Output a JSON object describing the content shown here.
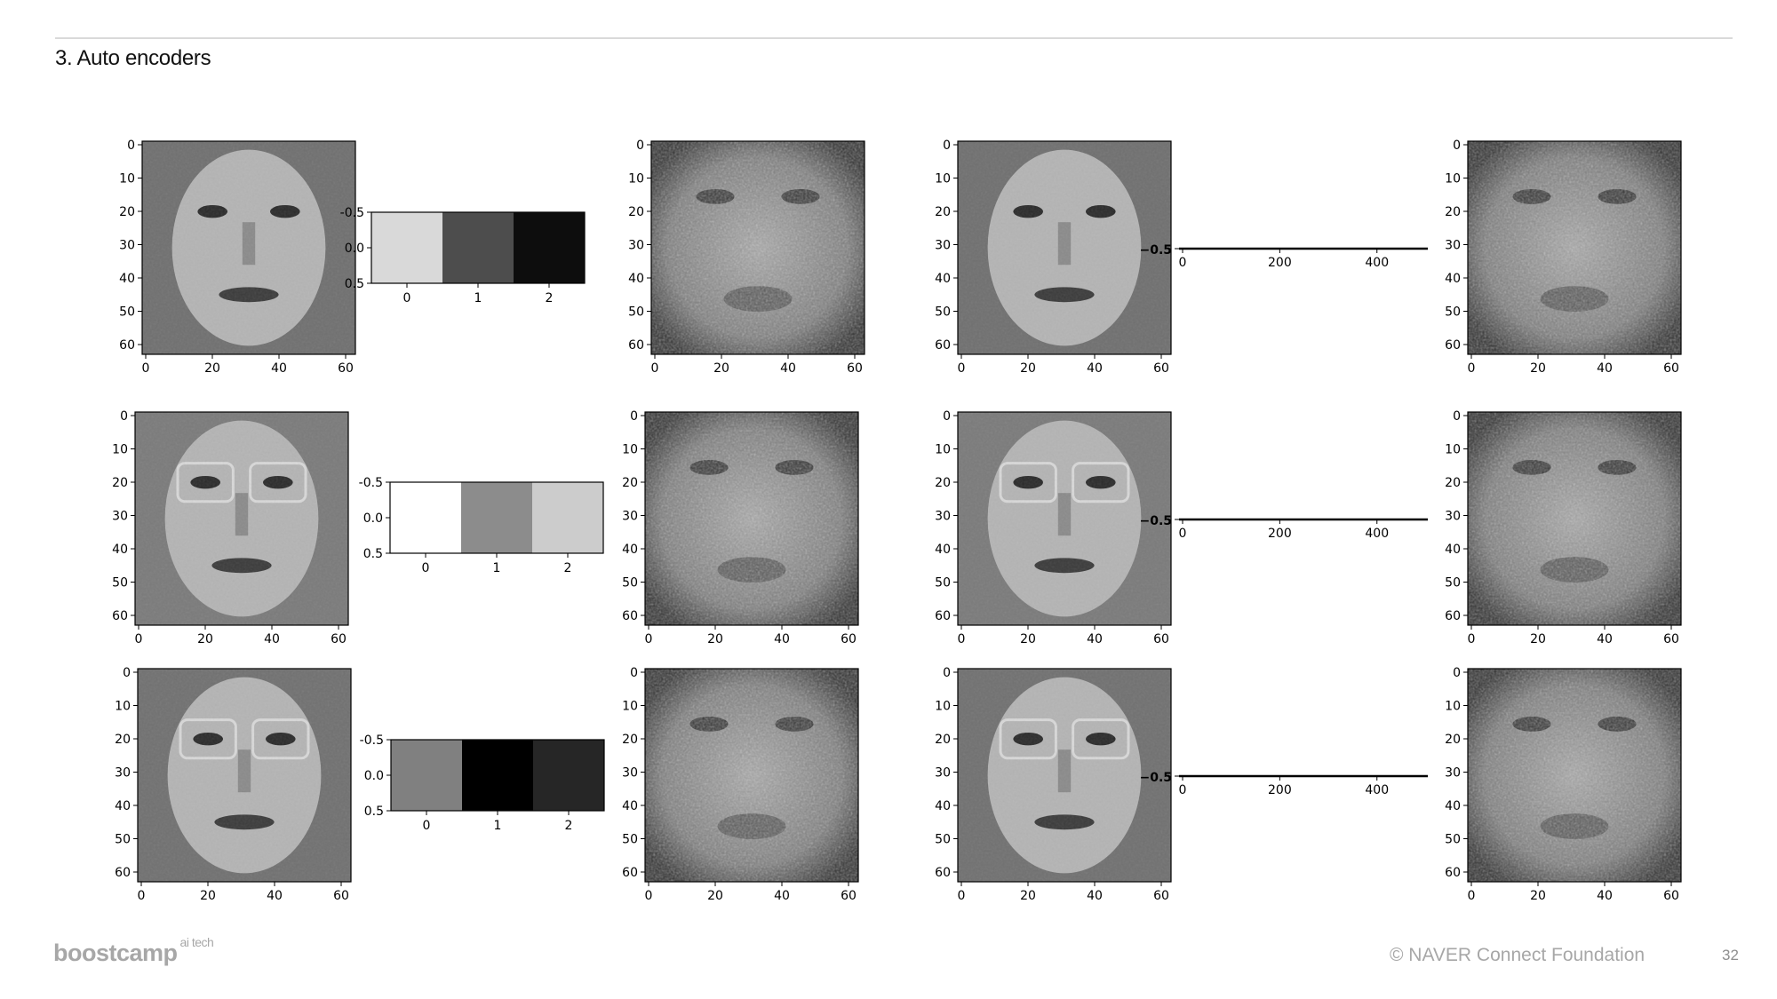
{
  "title": "3. Auto encoders",
  "footer": {
    "brand": "boostcamp",
    "brand_sup": "ai tech",
    "copyright": "© NAVER Connect Foundation",
    "page": "32"
  },
  "image_axes": {
    "ticks": [
      "0",
      "20",
      "40",
      "60"
    ],
    "yticks": [
      "0",
      "10",
      "20",
      "30",
      "40",
      "50",
      "60"
    ]
  },
  "chart_data": [
    {
      "type": "heatmap",
      "rows": [
        {
          "values": [
            0.85,
            0.3,
            0.05
          ],
          "xticks": [
            "0",
            "1",
            "2"
          ],
          "yticks": [
            "-0.5",
            "0.0",
            "0.5"
          ]
        },
        {
          "values": [
            1.0,
            0.55,
            0.8
          ],
          "xticks": [
            "0",
            "1",
            "2"
          ],
          "yticks": [
            "-0.5",
            "0.0",
            "0.5"
          ]
        },
        {
          "values": [
            0.5,
            0.0,
            0.15
          ],
          "xticks": [
            "0",
            "1",
            "2"
          ],
          "yticks": [
            "-0.5",
            "0.0",
            "0.5"
          ]
        }
      ]
    },
    {
      "type": "heatmap",
      "xticks": [
        "0",
        "200",
        "400"
      ],
      "overlap_label": "−0.5",
      "rows": 3
    }
  ]
}
